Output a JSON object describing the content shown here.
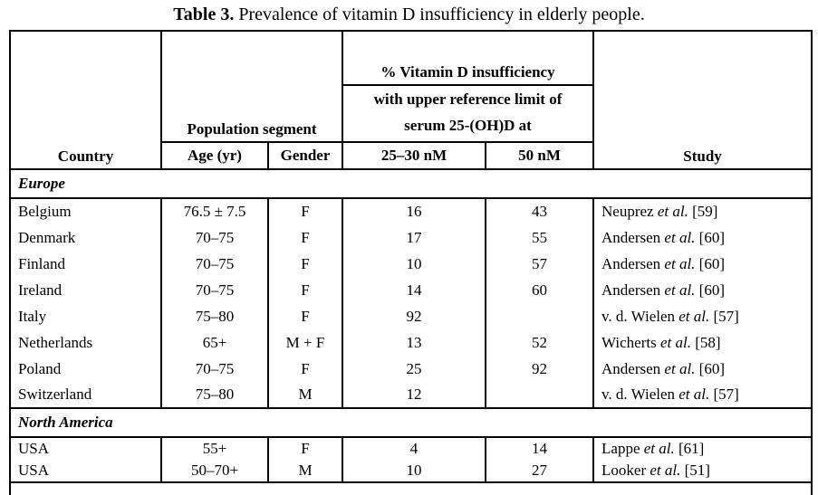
{
  "title": {
    "label": "Table 3.",
    "text": "Prevalence of vitamin D insufficiency in elderly people."
  },
  "table": {
    "header": {
      "country": "Country",
      "population_segment": "Population segment",
      "age": "Age (yr)",
      "gender": "Gender",
      "vitd_line1": "% Vitamin D insufficiency",
      "vitd_line2a": "with upper reference limit of",
      "vitd_line2b": "serum 25-(OH)D at",
      "col_25_30": "25–30 nM",
      "col_50": "50 nM",
      "study": "Study"
    },
    "sections": [
      {
        "name": "Europe",
        "rows": [
          {
            "country": "Belgium",
            "age": "76.5 ± 7.5",
            "gender": "F",
            "pct_25_30": "16",
            "pct_50": "43",
            "study_author": "Neuprez",
            "study_etal": "et al.",
            "study_ref": "[59]"
          },
          {
            "country": "Denmark",
            "age": "70–75",
            "gender": "F",
            "pct_25_30": "17",
            "pct_50": "55",
            "study_author": "Andersen",
            "study_etal": "et al.",
            "study_ref": "[60]"
          },
          {
            "country": "Finland",
            "age": "70–75",
            "gender": "F",
            "pct_25_30": "10",
            "pct_50": "57",
            "study_author": "Andersen",
            "study_etal": "et al.",
            "study_ref": "[60]"
          },
          {
            "country": "Ireland",
            "age": "70–75",
            "gender": "F",
            "pct_25_30": "14",
            "pct_50": "60",
            "study_author": "Andersen",
            "study_etal": "et al.",
            "study_ref": "[60]"
          },
          {
            "country": "Italy",
            "age": "75–80",
            "gender": "F",
            "pct_25_30": "92",
            "pct_50": "",
            "study_author": "v. d. Wielen",
            "study_etal": "et al.",
            "study_ref": "[57]"
          },
          {
            "country": "Netherlands",
            "age": "65+",
            "gender": "M + F",
            "pct_25_30": "13",
            "pct_50": "52",
            "study_author": "Wicherts",
            "study_etal": "et al.",
            "study_ref": "[58]"
          },
          {
            "country": "Poland",
            "age": "70–75",
            "gender": "F",
            "pct_25_30": "25",
            "pct_50": "92",
            "study_author": "Andersen",
            "study_etal": "et al.",
            "study_ref": "[60]"
          },
          {
            "country": "Switzerland",
            "age": "75–80",
            "gender": "M",
            "pct_25_30": "12",
            "pct_50": "",
            "study_author": "v. d. Wielen",
            "study_etal": "et al.",
            "study_ref": "[57]"
          }
        ]
      },
      {
        "name": "North America",
        "rows": [
          {
            "country": "USA",
            "age": "55+",
            "gender": "F",
            "pct_25_30": "4",
            "pct_50": "14",
            "study_author": "Lappe",
            "study_etal": "et al.",
            "study_ref": "[61]"
          },
          {
            "country": "USA",
            "age": "50–70+",
            "gender": "M",
            "pct_25_30": "10",
            "pct_50": "27",
            "study_author": "Looker",
            "study_etal": "et al.",
            "study_ref": "[51]"
          }
        ]
      }
    ]
  }
}
